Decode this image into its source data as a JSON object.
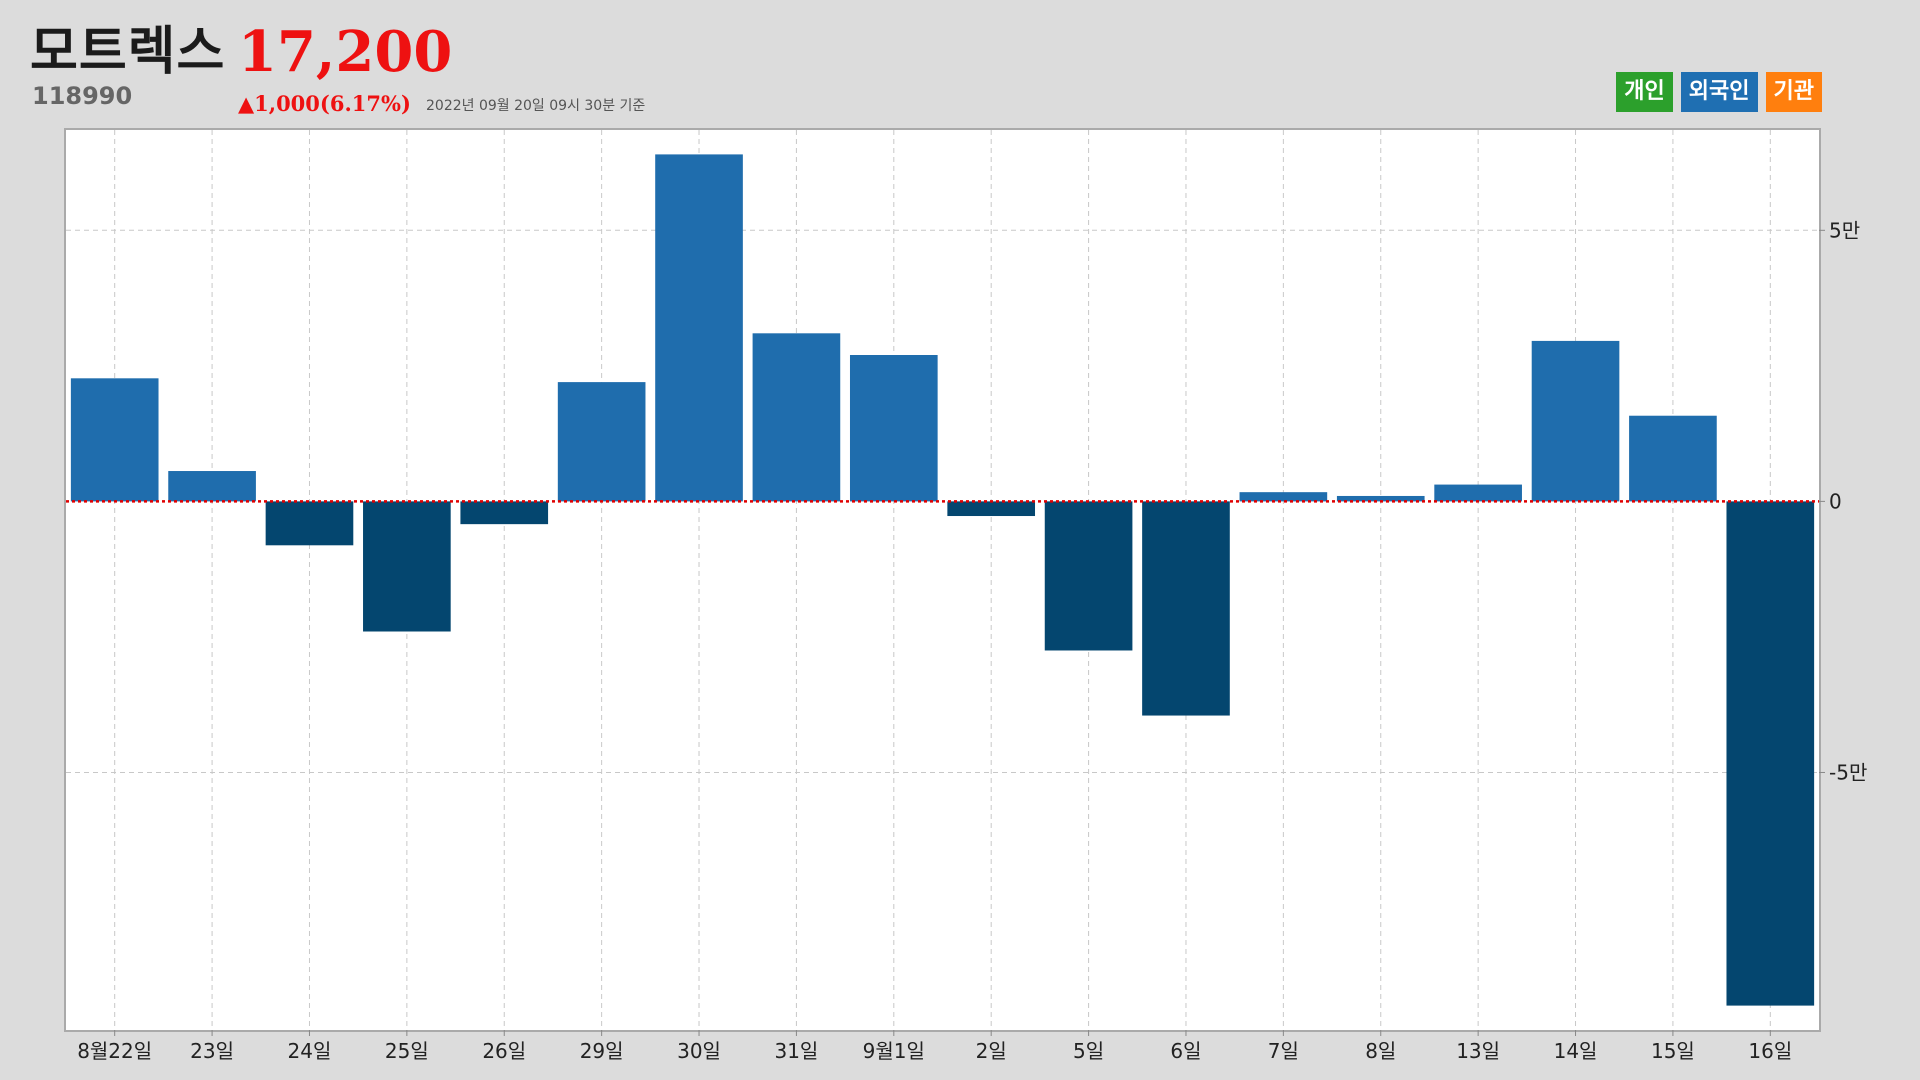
{
  "header": {
    "name": "모트렉스",
    "code": "118990",
    "price": "17,200",
    "change": "▲1,000(6.17%)",
    "asof": "2022년 09월 20일 09시 30분 기준"
  },
  "legend": [
    {
      "label": "개인",
      "color": "#2ca02c"
    },
    {
      "label": "외국인",
      "color": "#1f6fb2"
    },
    {
      "label": "기관",
      "color": "#ff7f0e"
    }
  ],
  "colors": {
    "positive": "#1f6dad",
    "negative": "#04466f",
    "zero_line": "#e00000"
  },
  "chart_data": {
    "type": "bar",
    "series_name": "외국인",
    "categories": [
      "8월22일",
      "23일",
      "24일",
      "25일",
      "26일",
      "29일",
      "30일",
      "31일",
      "9월1일",
      "2일",
      "5일",
      "6일",
      "7일",
      "8일",
      "13일",
      "14일",
      "15일",
      "16일"
    ],
    "values": [
      22700,
      5600,
      -8100,
      -24000,
      -4200,
      22000,
      64000,
      31000,
      27000,
      -2700,
      -27500,
      -39500,
      1700,
      1000,
      3100,
      29600,
      15800,
      -93000
    ],
    "ylim": [
      -97500,
      68500
    ],
    "yticks": [
      {
        "value": 50000,
        "label": "5만"
      },
      {
        "value": 0,
        "label": "0"
      },
      {
        "value": -50000,
        "label": "-5만"
      }
    ],
    "grid": true,
    "y_axis_side": "right",
    "legend_position": "top-right"
  }
}
